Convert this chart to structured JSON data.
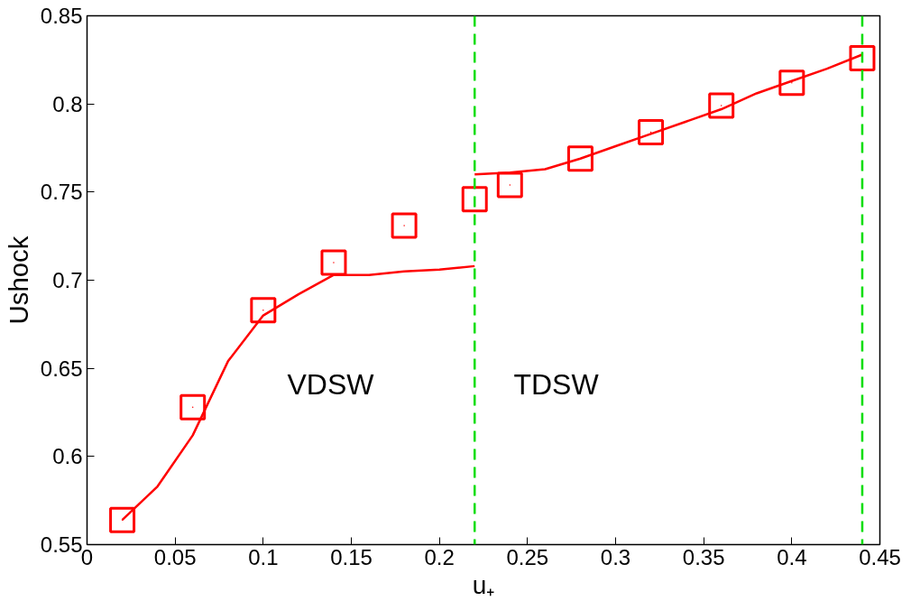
{
  "chart_data": {
    "type": "line",
    "xlabel": "u₊",
    "ylabel": "Ushock",
    "xlim": [
      0,
      0.45
    ],
    "ylim": [
      0.55,
      0.85
    ],
    "xticks": [
      0,
      0.05,
      0.1,
      0.15,
      0.2,
      0.25,
      0.3,
      0.35,
      0.4,
      0.45
    ],
    "yticks": [
      0.55,
      0.6,
      0.65,
      0.7,
      0.75,
      0.8,
      0.85
    ],
    "grid": false,
    "series": [
      {
        "type": "scatter",
        "marker": "square",
        "color": "#ff0000",
        "x": [
          0.02,
          0.06,
          0.1,
          0.14,
          0.18,
          0.22,
          0.24,
          0.28,
          0.32,
          0.36,
          0.4,
          0.44
        ],
        "values": [
          0.564,
          0.628,
          0.683,
          0.71,
          0.731,
          0.746,
          0.754,
          0.769,
          0.784,
          0.799,
          0.812,
          0.826
        ]
      },
      {
        "line_style": "solid",
        "color": "#ff0000",
        "x": [
          0.02,
          0.04,
          0.06,
          0.08,
          0.1,
          0.12,
          0.14,
          0.16,
          0.18,
          0.2,
          0.22
        ],
        "values": [
          0.564,
          0.583,
          0.612,
          0.654,
          0.68,
          0.692,
          0.703,
          0.703,
          0.705,
          0.706,
          0.708
        ]
      },
      {
        "line_style": "solid",
        "color": "#ff0000",
        "x": [
          0.22,
          0.24,
          0.26,
          0.28,
          0.3,
          0.32,
          0.34,
          0.36,
          0.38,
          0.4,
          0.42,
          0.44
        ],
        "values": [
          0.76,
          0.761,
          0.763,
          0.769,
          0.776,
          0.783,
          0.79,
          0.797,
          0.806,
          0.813,
          0.82,
          0.828
        ]
      }
    ],
    "ref_lines": [
      {
        "axis": "x",
        "value": 0.22,
        "color": "#00dd00",
        "line_style": "dashed"
      },
      {
        "axis": "x",
        "value": 0.44,
        "color": "#00dd00",
        "line_style": "dashed"
      }
    ],
    "annotations": [
      "VDSW",
      "TDSW"
    ]
  }
}
